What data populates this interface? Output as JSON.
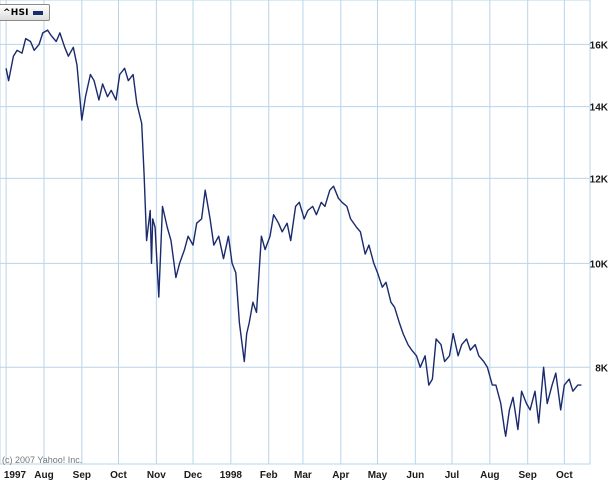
{
  "legend": {
    "label": "^HSI",
    "swatch_color": "#1a2a6c"
  },
  "copyright": "(c) 2007 Yahoo! Inc.",
  "chart_data": {
    "type": "line",
    "title": "",
    "xlabel": "",
    "ylabel": "",
    "y_scale": "log",
    "ylim": [
      6500,
      17600
    ],
    "grid": true,
    "line_color": "#1a2a6c",
    "grid_color": "#b8d4ea",
    "y_ticks": [
      {
        "value": 8000,
        "label": "8K"
      },
      {
        "value": 10000,
        "label": "10K"
      },
      {
        "value": 12000,
        "label": "12K"
      },
      {
        "value": 14000,
        "label": "14K"
      },
      {
        "value": 16000,
        "label": "16K"
      }
    ],
    "x_ticks": [
      {
        "date": "1997-07-01",
        "label": "1997"
      },
      {
        "date": "1997-08-01",
        "label": "Aug"
      },
      {
        "date": "1997-09-01",
        "label": "Sep"
      },
      {
        "date": "1997-10-01",
        "label": "Oct"
      },
      {
        "date": "1997-11-01",
        "label": "Nov"
      },
      {
        "date": "1997-12-01",
        "label": "Dec"
      },
      {
        "date": "1998-01-01",
        "label": "1998"
      },
      {
        "date": "1998-02-01",
        "label": "Feb"
      },
      {
        "date": "1998-03-01",
        "label": "Mar"
      },
      {
        "date": "1998-04-01",
        "label": "Apr"
      },
      {
        "date": "1998-05-01",
        "label": "May"
      },
      {
        "date": "1998-06-01",
        "label": "Jun"
      },
      {
        "date": "1998-07-01",
        "label": "Jul"
      },
      {
        "date": "1998-08-01",
        "label": "Aug"
      },
      {
        "date": "1998-09-01",
        "label": "Sep"
      },
      {
        "date": "1998-10-01",
        "label": "Oct"
      }
    ],
    "series": [
      {
        "name": "^HSI",
        "x": [
          "1997-07-01",
          "1997-07-03",
          "1997-07-07",
          "1997-07-10",
          "1997-07-14",
          "1997-07-17",
          "1997-07-21",
          "1997-07-24",
          "1997-07-28",
          "1997-07-31",
          "1997-08-04",
          "1997-08-07",
          "1997-08-11",
          "1997-08-14",
          "1997-08-18",
          "1997-08-21",
          "1997-08-25",
          "1997-08-28",
          "1997-09-01",
          "1997-09-04",
          "1997-09-08",
          "1997-09-11",
          "1997-09-15",
          "1997-09-18",
          "1997-09-22",
          "1997-09-25",
          "1997-09-29",
          "1997-10-02",
          "1997-10-06",
          "1997-10-09",
          "1997-10-13",
          "1997-10-16",
          "1997-10-20",
          "1997-10-22",
          "1997-10-24",
          "1997-10-27",
          "1997-10-28",
          "1997-10-29",
          "1997-10-31",
          "1997-11-03",
          "1997-11-06",
          "1997-11-10",
          "1997-11-13",
          "1997-11-17",
          "1997-11-20",
          "1997-11-24",
          "1997-11-27",
          "1997-12-01",
          "1997-12-04",
          "1997-12-08",
          "1997-12-11",
          "1997-12-15",
          "1997-12-18",
          "1997-12-22",
          "1997-12-26",
          "1997-12-30",
          "1998-01-02",
          "1998-01-05",
          "1998-01-08",
          "1998-01-12",
          "1998-01-14",
          "1998-01-16",
          "1998-01-19",
          "1998-01-22",
          "1998-01-26",
          "1998-01-29",
          "1998-02-02",
          "1998-02-05",
          "1998-02-09",
          "1998-02-12",
          "1998-02-16",
          "1998-02-19",
          "1998-02-23",
          "1998-02-26",
          "1998-03-02",
          "1998-03-05",
          "1998-03-09",
          "1998-03-12",
          "1998-03-16",
          "1998-03-19",
          "1998-03-23",
          "1998-03-26",
          "1998-03-30",
          "1998-04-02",
          "1998-04-06",
          "1998-04-09",
          "1998-04-14",
          "1998-04-17",
          "1998-04-21",
          "1998-04-24",
          "1998-04-28",
          "1998-05-01",
          "1998-05-05",
          "1998-05-08",
          "1998-05-12",
          "1998-05-15",
          "1998-05-19",
          "1998-05-22",
          "1998-05-26",
          "1998-05-29",
          "1998-06-02",
          "1998-06-05",
          "1998-06-09",
          "1998-06-12",
          "1998-06-15",
          "1998-06-18",
          "1998-06-22",
          "1998-06-25",
          "1998-06-29",
          "1998-07-02",
          "1998-07-06",
          "1998-07-09",
          "1998-07-13",
          "1998-07-16",
          "1998-07-20",
          "1998-07-23",
          "1998-07-27",
          "1998-07-30",
          "1998-08-03",
          "1998-08-06",
          "1998-08-10",
          "1998-08-13",
          "1998-08-14",
          "1998-08-17",
          "1998-08-20",
          "1998-08-24",
          "1998-08-27",
          "1998-08-31",
          "1998-09-03",
          "1998-09-07",
          "1998-09-10",
          "1998-09-14",
          "1998-09-17",
          "1998-09-21",
          "1998-09-24",
          "1998-09-28",
          "1998-10-01",
          "1998-10-05",
          "1998-10-08",
          "1998-10-12",
          "1998-10-15"
        ],
        "values": [
          15200,
          14800,
          15600,
          15800,
          15700,
          16200,
          16100,
          15800,
          16000,
          16400,
          16500,
          16300,
          16100,
          16400,
          15900,
          15600,
          15900,
          15300,
          13600,
          14300,
          15000,
          14800,
          14200,
          14700,
          14300,
          14500,
          14200,
          15000,
          15200,
          14800,
          15000,
          14100,
          13500,
          12100,
          10500,
          11200,
          10000,
          11000,
          10800,
          9300,
          11300,
          10800,
          10500,
          9700,
          10000,
          10300,
          10600,
          10400,
          10900,
          11000,
          11700,
          11000,
          10400,
          10600,
          10100,
          10600,
          10000,
          9800,
          8800,
          8100,
          8600,
          8800,
          9200,
          9000,
          10600,
          10300,
          10600,
          11100,
          10900,
          10700,
          10900,
          10500,
          11300,
          11400,
          11000,
          11200,
          11300,
          11100,
          11400,
          11300,
          11700,
          11800,
          11500,
          11400,
          11300,
          11000,
          10800,
          10700,
          10200,
          10400,
          10000,
          9800,
          9500,
          9600,
          9200,
          9100,
          8800,
          8600,
          8400,
          8300,
          8200,
          8000,
          8200,
          7700,
          7800,
          8500,
          8400,
          8100,
          8200,
          8600,
          8200,
          8400,
          8500,
          8300,
          8400,
          8200,
          8100,
          8000,
          7700,
          7700,
          7400,
          7000,
          6900,
          7300,
          7500,
          7000,
          7600,
          7400,
          7300,
          7600,
          7100,
          8000,
          7400,
          7700,
          7900,
          7300,
          7700,
          7800,
          7600,
          7700,
          7700
        ]
      }
    ]
  }
}
